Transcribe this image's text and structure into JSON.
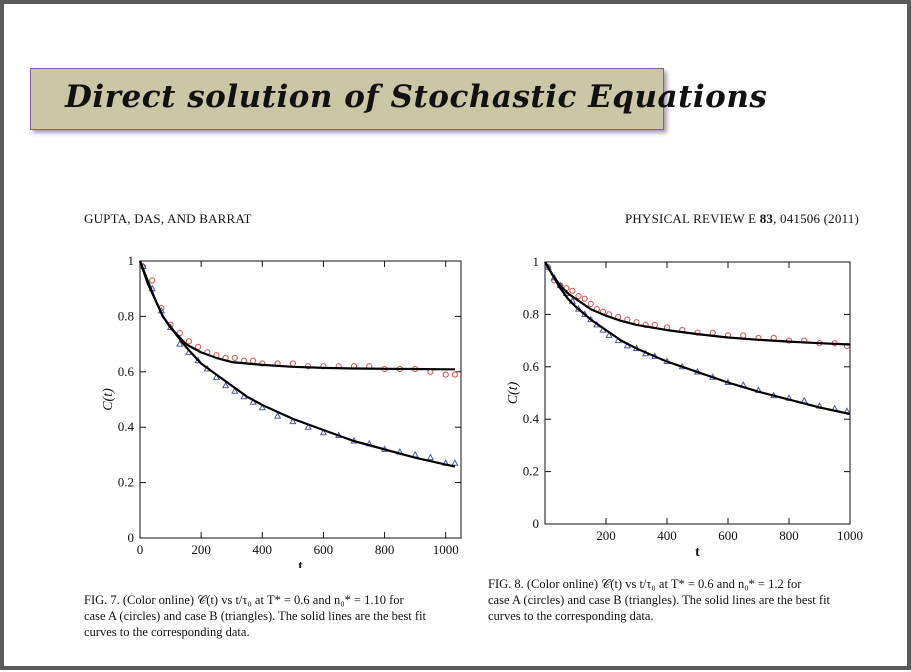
{
  "slide": {
    "title": "Direct solution of Stochastic Equations"
  },
  "paper": {
    "authors": "GUPTA, DAS, AND BARRAT",
    "journal_prefix": "PHYSICAL REVIEW E ",
    "journal_volume": "83",
    "journal_suffix": ", 041506 (2011)"
  },
  "figures": [
    {
      "caption_lines": [
        "FIG. 7. (Color online) 𝒞(t) vs t/τ₀ at T* = 0.6 and n₀* = 1.10 for",
        "case A (circles) and case B (triangles). The solid lines are the best fit",
        "curves to the corresponding data."
      ]
    },
    {
      "caption_lines": [
        "FIG. 8. (Color online) 𝒞(t) vs t/τ₀ at T* = 0.6 and n₀* = 1.2 for",
        "case A (circles) and case B (triangles). The solid lines are the best fit",
        "curves to the corresponding data."
      ]
    }
  ],
  "colors": {
    "circles": "#d9534f",
    "triangles": "#4a5aa8",
    "fit": "#000000"
  },
  "chart_data": [
    {
      "type": "scatter",
      "xlabel": "t",
      "ylabel": "C(t)",
      "xlim": [
        0,
        1050
      ],
      "ylim": [
        0,
        1
      ],
      "xticks": [
        0,
        200,
        400,
        600,
        800,
        1000
      ],
      "yticks": [
        0,
        0.2,
        0.4,
        0.6,
        0.8,
        1
      ],
      "ytick_labels": [
        "0",
        "0.2",
        "0.4",
        "0.6",
        "0.8",
        "1"
      ],
      "grid": false,
      "series": [
        {
          "marker": "circle",
          "x": [
            10,
            40,
            70,
            100,
            130,
            160,
            190,
            220,
            250,
            280,
            310,
            340,
            370,
            400,
            450,
            500,
            550,
            600,
            650,
            700,
            750,
            800,
            850,
            900,
            950,
            1000,
            1030
          ],
          "y": [
            0.98,
            0.93,
            0.83,
            0.77,
            0.74,
            0.71,
            0.69,
            0.67,
            0.66,
            0.65,
            0.65,
            0.64,
            0.64,
            0.63,
            0.63,
            0.63,
            0.62,
            0.62,
            0.62,
            0.62,
            0.62,
            0.61,
            0.61,
            0.61,
            0.6,
            0.59,
            0.59
          ]
        },
        {
          "marker": "triangle",
          "x": [
            10,
            40,
            70,
            100,
            130,
            160,
            190,
            220,
            250,
            280,
            310,
            340,
            370,
            400,
            450,
            500,
            550,
            600,
            650,
            700,
            750,
            800,
            850,
            900,
            950,
            1000,
            1030
          ],
          "y": [
            0.98,
            0.9,
            0.82,
            0.76,
            0.7,
            0.67,
            0.64,
            0.61,
            0.58,
            0.55,
            0.53,
            0.51,
            0.49,
            0.47,
            0.44,
            0.42,
            0.4,
            0.38,
            0.37,
            0.35,
            0.34,
            0.32,
            0.31,
            0.3,
            0.29,
            0.27,
            0.27
          ]
        },
        {
          "marker": "line",
          "x": [
            0,
            25,
            50,
            75,
            100,
            150,
            200,
            250,
            300,
            350,
            400,
            500,
            600,
            700,
            800,
            900,
            1000,
            1030
          ],
          "y": [
            1.0,
            0.93,
            0.86,
            0.8,
            0.76,
            0.7,
            0.67,
            0.65,
            0.635,
            0.63,
            0.625,
            0.618,
            0.614,
            0.612,
            0.611,
            0.61,
            0.609,
            0.609
          ]
        },
        {
          "marker": "line",
          "x": [
            0,
            25,
            50,
            75,
            100,
            150,
            200,
            250,
            300,
            350,
            400,
            500,
            600,
            700,
            800,
            900,
            1000,
            1030
          ],
          "y": [
            1.0,
            0.92,
            0.86,
            0.8,
            0.76,
            0.69,
            0.63,
            0.59,
            0.55,
            0.51,
            0.48,
            0.43,
            0.39,
            0.35,
            0.32,
            0.29,
            0.265,
            0.258
          ]
        }
      ]
    },
    {
      "type": "scatter",
      "xlabel": "t",
      "ylabel": "C(t)",
      "xlim": [
        0,
        1000
      ],
      "ylim": [
        0,
        1
      ],
      "xticks": [
        200,
        400,
        600,
        800,
        1000
      ],
      "yticks": [
        0,
        0.2,
        0.4,
        0.6,
        0.8,
        1
      ],
      "ytick_labels": [
        "0",
        "0.2",
        "0.4",
        "0.6",
        "0.8",
        "1"
      ],
      "grid": false,
      "series": [
        {
          "marker": "circle",
          "x": [
            10,
            30,
            50,
            70,
            90,
            110,
            130,
            150,
            170,
            190,
            210,
            240,
            270,
            300,
            330,
            360,
            400,
            450,
            500,
            550,
            600,
            650,
            700,
            750,
            800,
            850,
            900,
            950,
            990
          ],
          "y": [
            0.98,
            0.93,
            0.91,
            0.9,
            0.89,
            0.87,
            0.86,
            0.84,
            0.82,
            0.81,
            0.8,
            0.79,
            0.78,
            0.77,
            0.76,
            0.76,
            0.75,
            0.74,
            0.73,
            0.73,
            0.72,
            0.72,
            0.71,
            0.71,
            0.7,
            0.7,
            0.69,
            0.69,
            0.68
          ]
        },
        {
          "marker": "triangle",
          "x": [
            10,
            30,
            50,
            70,
            90,
            110,
            130,
            150,
            170,
            190,
            210,
            240,
            270,
            300,
            330,
            360,
            400,
            450,
            500,
            550,
            600,
            650,
            700,
            750,
            800,
            850,
            900,
            950,
            990
          ],
          "y": [
            0.98,
            0.94,
            0.91,
            0.88,
            0.85,
            0.82,
            0.8,
            0.78,
            0.76,
            0.74,
            0.72,
            0.7,
            0.68,
            0.67,
            0.65,
            0.64,
            0.62,
            0.6,
            0.58,
            0.56,
            0.54,
            0.53,
            0.51,
            0.49,
            0.48,
            0.47,
            0.45,
            0.44,
            0.43
          ]
        },
        {
          "marker": "line",
          "x": [
            0,
            25,
            50,
            75,
            100,
            150,
            200,
            250,
            300,
            400,
            500,
            600,
            700,
            800,
            900,
            1000
          ],
          "y": [
            1.0,
            0.95,
            0.91,
            0.88,
            0.86,
            0.82,
            0.795,
            0.775,
            0.76,
            0.74,
            0.725,
            0.712,
            0.703,
            0.696,
            0.69,
            0.685
          ]
        },
        {
          "marker": "line",
          "x": [
            0,
            25,
            50,
            75,
            100,
            150,
            200,
            250,
            300,
            400,
            500,
            600,
            700,
            800,
            900,
            1000
          ],
          "y": [
            1.0,
            0.95,
            0.9,
            0.86,
            0.83,
            0.78,
            0.74,
            0.7,
            0.67,
            0.62,
            0.58,
            0.54,
            0.505,
            0.475,
            0.445,
            0.42
          ]
        }
      ]
    }
  ]
}
